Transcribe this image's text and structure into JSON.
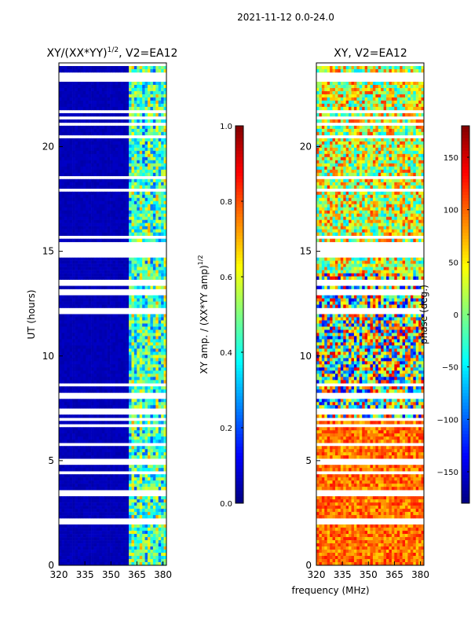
{
  "figure": {
    "suptitle": "2021-11-12 0.0-24.0",
    "xlabel_shared": "frequency (MHz)"
  },
  "chart_data": [
    {
      "type": "heatmap",
      "title_main": "XY/(XX*YY)",
      "title_exp": "1/2",
      "title_suffix": ", V2=EA12",
      "ylabel": "UT (hours)",
      "xlim": [
        320,
        382
      ],
      "ylim": [
        0,
        24
      ],
      "xticks": [
        320,
        335,
        350,
        365,
        380
      ],
      "yticks": [
        0,
        5,
        10,
        15,
        20
      ],
      "colormap": "jet",
      "colorbar": {
        "label_main": "XY amp. / (XX*YY amp)",
        "label_exp": "1/2",
        "range": [
          0.0,
          1.0
        ],
        "ticks": [
          "0.0",
          "0.2",
          "0.4",
          "0.6",
          "0.8",
          "1.0"
        ]
      },
      "structure": {
        "low_band_level": 0.04,
        "high_band_start_mhz": 360,
        "high_band_level_range": [
          0.2,
          0.6
        ],
        "flagged_hours": [
          [
            1.9,
            2.25
          ],
          [
            7.15,
            7.55
          ],
          [
            12.1,
            12.35
          ],
          [
            14.75,
            14.95
          ],
          [
            15.05,
            15.3
          ],
          [
            20.4,
            20.6
          ]
        ]
      }
    },
    {
      "type": "heatmap",
      "title": "XY, V2=EA12",
      "xlim": [
        320,
        382
      ],
      "ylim": [
        0,
        24
      ],
      "xticks": [
        320,
        335,
        350,
        365,
        380
      ],
      "yticks": [
        0,
        5,
        10,
        15,
        20
      ],
      "colormap": "jet",
      "colorbar": {
        "label": "phase (deg.)",
        "range": [
          -180,
          180
        ],
        "ticks": [
          "−150",
          "−100",
          "−50",
          "0",
          "50",
          "100",
          "150"
        ],
        "tick_values": [
          -150,
          -100,
          -50,
          0,
          50,
          100,
          150
        ]
      },
      "structure": {
        "hours_0_7_phase_range": [
          60,
          130
        ],
        "hours_7_14_phase_range": [
          -150,
          150
        ],
        "hours_14_24_phase_range": [
          -60,
          120
        ],
        "flagged_hours": [
          [
            1.9,
            2.25
          ],
          [
            7.15,
            7.55
          ],
          [
            12.1,
            12.35
          ],
          [
            14.75,
            14.95
          ],
          [
            15.05,
            15.3
          ],
          [
            20.4,
            20.6
          ]
        ]
      }
    }
  ]
}
